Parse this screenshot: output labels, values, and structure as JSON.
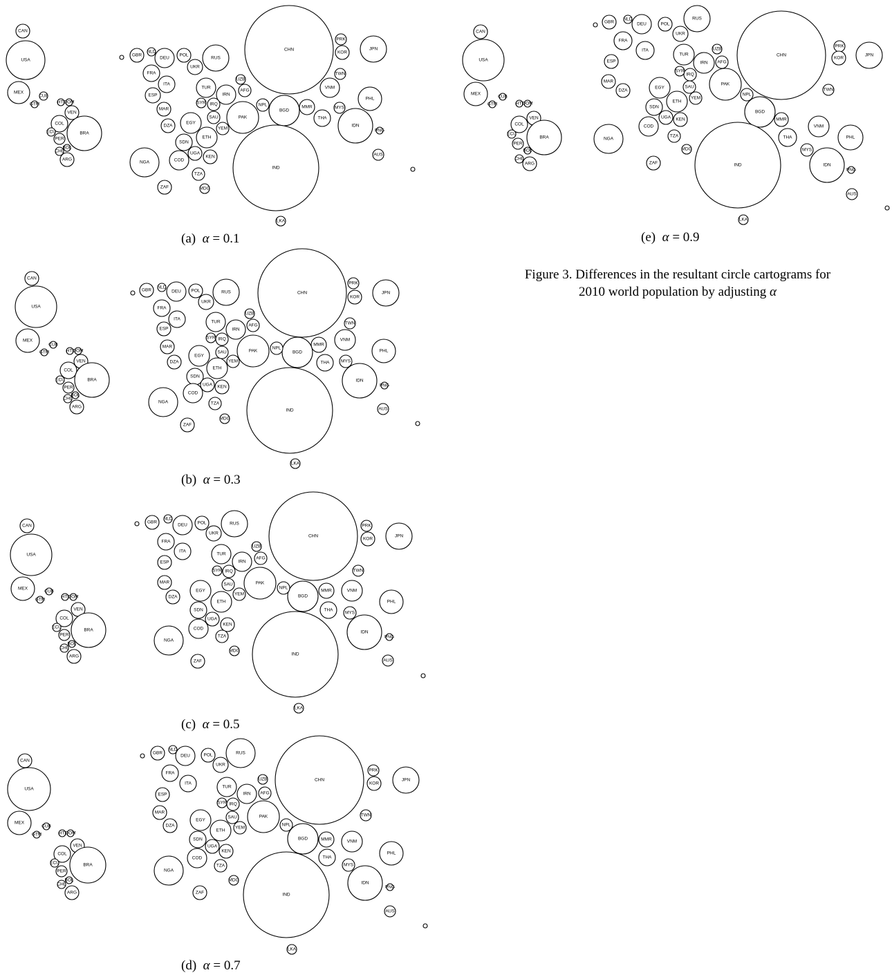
{
  "figure_caption": {
    "line1": "Figure 3.  Differences in the resultant circle cartograms for",
    "line2": "2010 world population by adjusting α"
  },
  "alpha_symbol": "α",
  "panels": [
    {
      "id": "a",
      "label": "(a)",
      "alpha_text": "= 0.1"
    },
    {
      "id": "b",
      "label": "(b)",
      "alpha_text": "= 0.3"
    },
    {
      "id": "c",
      "label": "(c)",
      "alpha_text": "= 0.5"
    },
    {
      "id": "d",
      "label": "(d)",
      "alpha_text": "= 0.7"
    },
    {
      "id": "e",
      "label": "(e)",
      "alpha_text": "= 0.9"
    }
  ],
  "countries": [
    "CAN",
    "USA",
    "MEX",
    "CUB",
    "GTM",
    "HTI",
    "DOM",
    "VEN",
    "COL",
    "BRA",
    "ECU",
    "PER",
    "CHL",
    "BOL",
    "ARG",
    "GBR",
    "NLD",
    "BEL",
    "DEU",
    "POL",
    "FRA",
    "ITA",
    "ESP",
    "PRT",
    "UKR",
    "ROM",
    "RUS",
    "SWE",
    "CZE",
    "HUN",
    "SRB",
    "GRC",
    "TUR",
    "KAZ",
    "UZB",
    "IRN",
    "IRQ",
    "SYR",
    "SAU",
    "YEM",
    "AFG",
    "MAR",
    "DZA",
    "TUN",
    "EGY",
    "SDN",
    "ETH",
    "SOM",
    "KEN",
    "UGA",
    "TZA",
    "COD",
    "AGO",
    "ZMB",
    "MWI",
    "MOZ",
    "ZWE",
    "ZAF",
    "MDG",
    "NGA",
    "GHA",
    "CIV",
    "BFA",
    "MLI",
    "NER",
    "SEN",
    "GIN",
    "CMR",
    "TCD",
    "CHN",
    "PRK",
    "KOR",
    "JPN",
    "TWN",
    "VNM",
    "PHL",
    "MYS",
    "THA",
    "KHM",
    "MMR",
    "BGD",
    "NPL",
    "PAK",
    "IND",
    "LKA",
    "IDN",
    "PNG",
    "AUS"
  ]
}
